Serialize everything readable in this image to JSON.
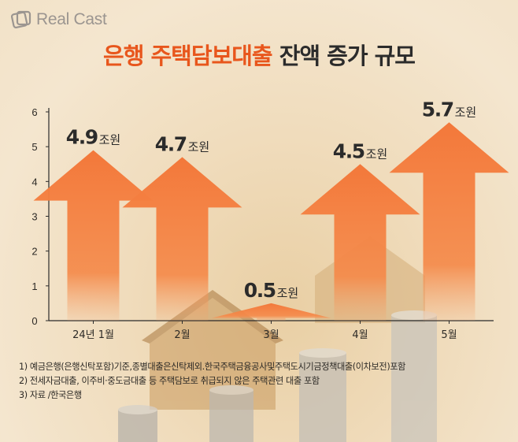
{
  "brand": {
    "name": "Real Cast",
    "logo_icon": "realcast-logo-icon"
  },
  "title": {
    "highlight": "은행 주택담보대출",
    "rest": "잔액 증가 규모"
  },
  "colors": {
    "accent": "#e8561c",
    "bar": "#f3783a",
    "axis": "#2b2b2b",
    "text": "#2d2a26"
  },
  "chart_data": {
    "type": "bar",
    "title": "은행 주택담보대출 잔액 증가 규모",
    "categories": [
      "24년 1월",
      "2월",
      "3월",
      "4월",
      "5월"
    ],
    "values": [
      4.9,
      4.7,
      0.5,
      4.5,
      5.7
    ],
    "value_labels": [
      {
        "num": "4.9",
        "unit": "조원"
      },
      {
        "num": "4.7",
        "unit": "조원"
      },
      {
        "num": "0.5",
        "unit": "조원"
      },
      {
        "num": "4.5",
        "unit": "조원"
      },
      {
        "num": "5.7",
        "unit": "조원"
      }
    ],
    "y_ticks": [
      "0",
      "1",
      "2",
      "3",
      "4",
      "5",
      "6"
    ],
    "ylim": [
      0,
      6
    ],
    "xlabel": "",
    "ylabel": "",
    "grid": false,
    "mark_shape": "arrow"
  },
  "notes": [
    "1) 예금은행(은행신탁포함)기준,종별대출은신탁제외.한국주택금융공사및주택도시기금정책대출(이차보전)포함",
    "2) 전세자금대출, 이주비·중도금대출 등 주택담보로 취급되지 않은 주택관련 대출 포함",
    "3) 자료 /한국은행"
  ]
}
